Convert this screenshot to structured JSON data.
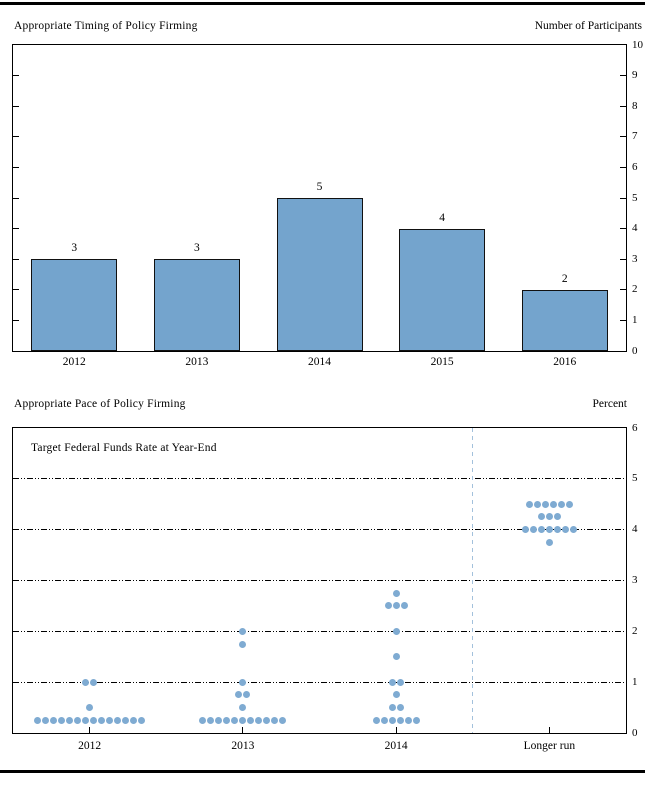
{
  "colors": {
    "bar_fill": "#74a4cd",
    "bar_border": "#111111",
    "dot_fill": "#7fabd2",
    "separator": "#a3c1dc",
    "axis": "#000000"
  },
  "chart_data": [
    {
      "type": "bar",
      "title": "Appropriate Timing of Policy Firming",
      "ylabel": "Number of Participants",
      "categories": [
        "2012",
        "2013",
        "2014",
        "2015",
        "2016"
      ],
      "values": [
        3,
        3,
        5,
        4,
        2
      ],
      "value_labels": [
        "3",
        "3",
        "5",
        "4",
        "2"
      ],
      "ylim": [
        0,
        10
      ],
      "yticks": [
        0,
        1,
        2,
        3,
        4,
        5,
        6,
        7,
        8,
        9,
        10
      ],
      "grid": false,
      "ytick_side": "right"
    },
    {
      "type": "scatter",
      "title": "Appropriate Pace of Policy Firming",
      "ylabel": "Percent",
      "annotation": "Target Federal Funds Rate at Year-End",
      "categories": [
        "2012",
        "2013",
        "2014",
        "Longer run"
      ],
      "ylim": [
        0,
        6
      ],
      "yticks": [
        0,
        1,
        2,
        3,
        4,
        5,
        6
      ],
      "gridlines": [
        1,
        2,
        3,
        4,
        5
      ],
      "grid": true,
      "separator_before_category": "Longer run",
      "series": [
        {
          "category": "2012",
          "dots": [
            {
              "rate": 0.25,
              "count": 14
            },
            {
              "rate": 0.5,
              "count": 1
            },
            {
              "rate": 1.0,
              "count": 2
            }
          ]
        },
        {
          "category": "2013",
          "dots": [
            {
              "rate": 0.25,
              "count": 11
            },
            {
              "rate": 0.5,
              "count": 1
            },
            {
              "rate": 0.75,
              "count": 2
            },
            {
              "rate": 1.0,
              "count": 1
            },
            {
              "rate": 1.75,
              "count": 1
            },
            {
              "rate": 2.0,
              "count": 1
            }
          ]
        },
        {
          "category": "2014",
          "dots": [
            {
              "rate": 0.25,
              "count": 6
            },
            {
              "rate": 0.5,
              "count": 2
            },
            {
              "rate": 0.75,
              "count": 1
            },
            {
              "rate": 1.0,
              "count": 2
            },
            {
              "rate": 1.5,
              "count": 1
            },
            {
              "rate": 2.0,
              "count": 1
            },
            {
              "rate": 2.5,
              "count": 3
            },
            {
              "rate": 2.75,
              "count": 1
            }
          ]
        },
        {
          "category": "Longer run",
          "dots": [
            {
              "rate": 3.75,
              "count": 1
            },
            {
              "rate": 4.0,
              "count": 7
            },
            {
              "rate": 4.25,
              "count": 3
            },
            {
              "rate": 4.5,
              "count": 6
            }
          ]
        }
      ]
    }
  ]
}
